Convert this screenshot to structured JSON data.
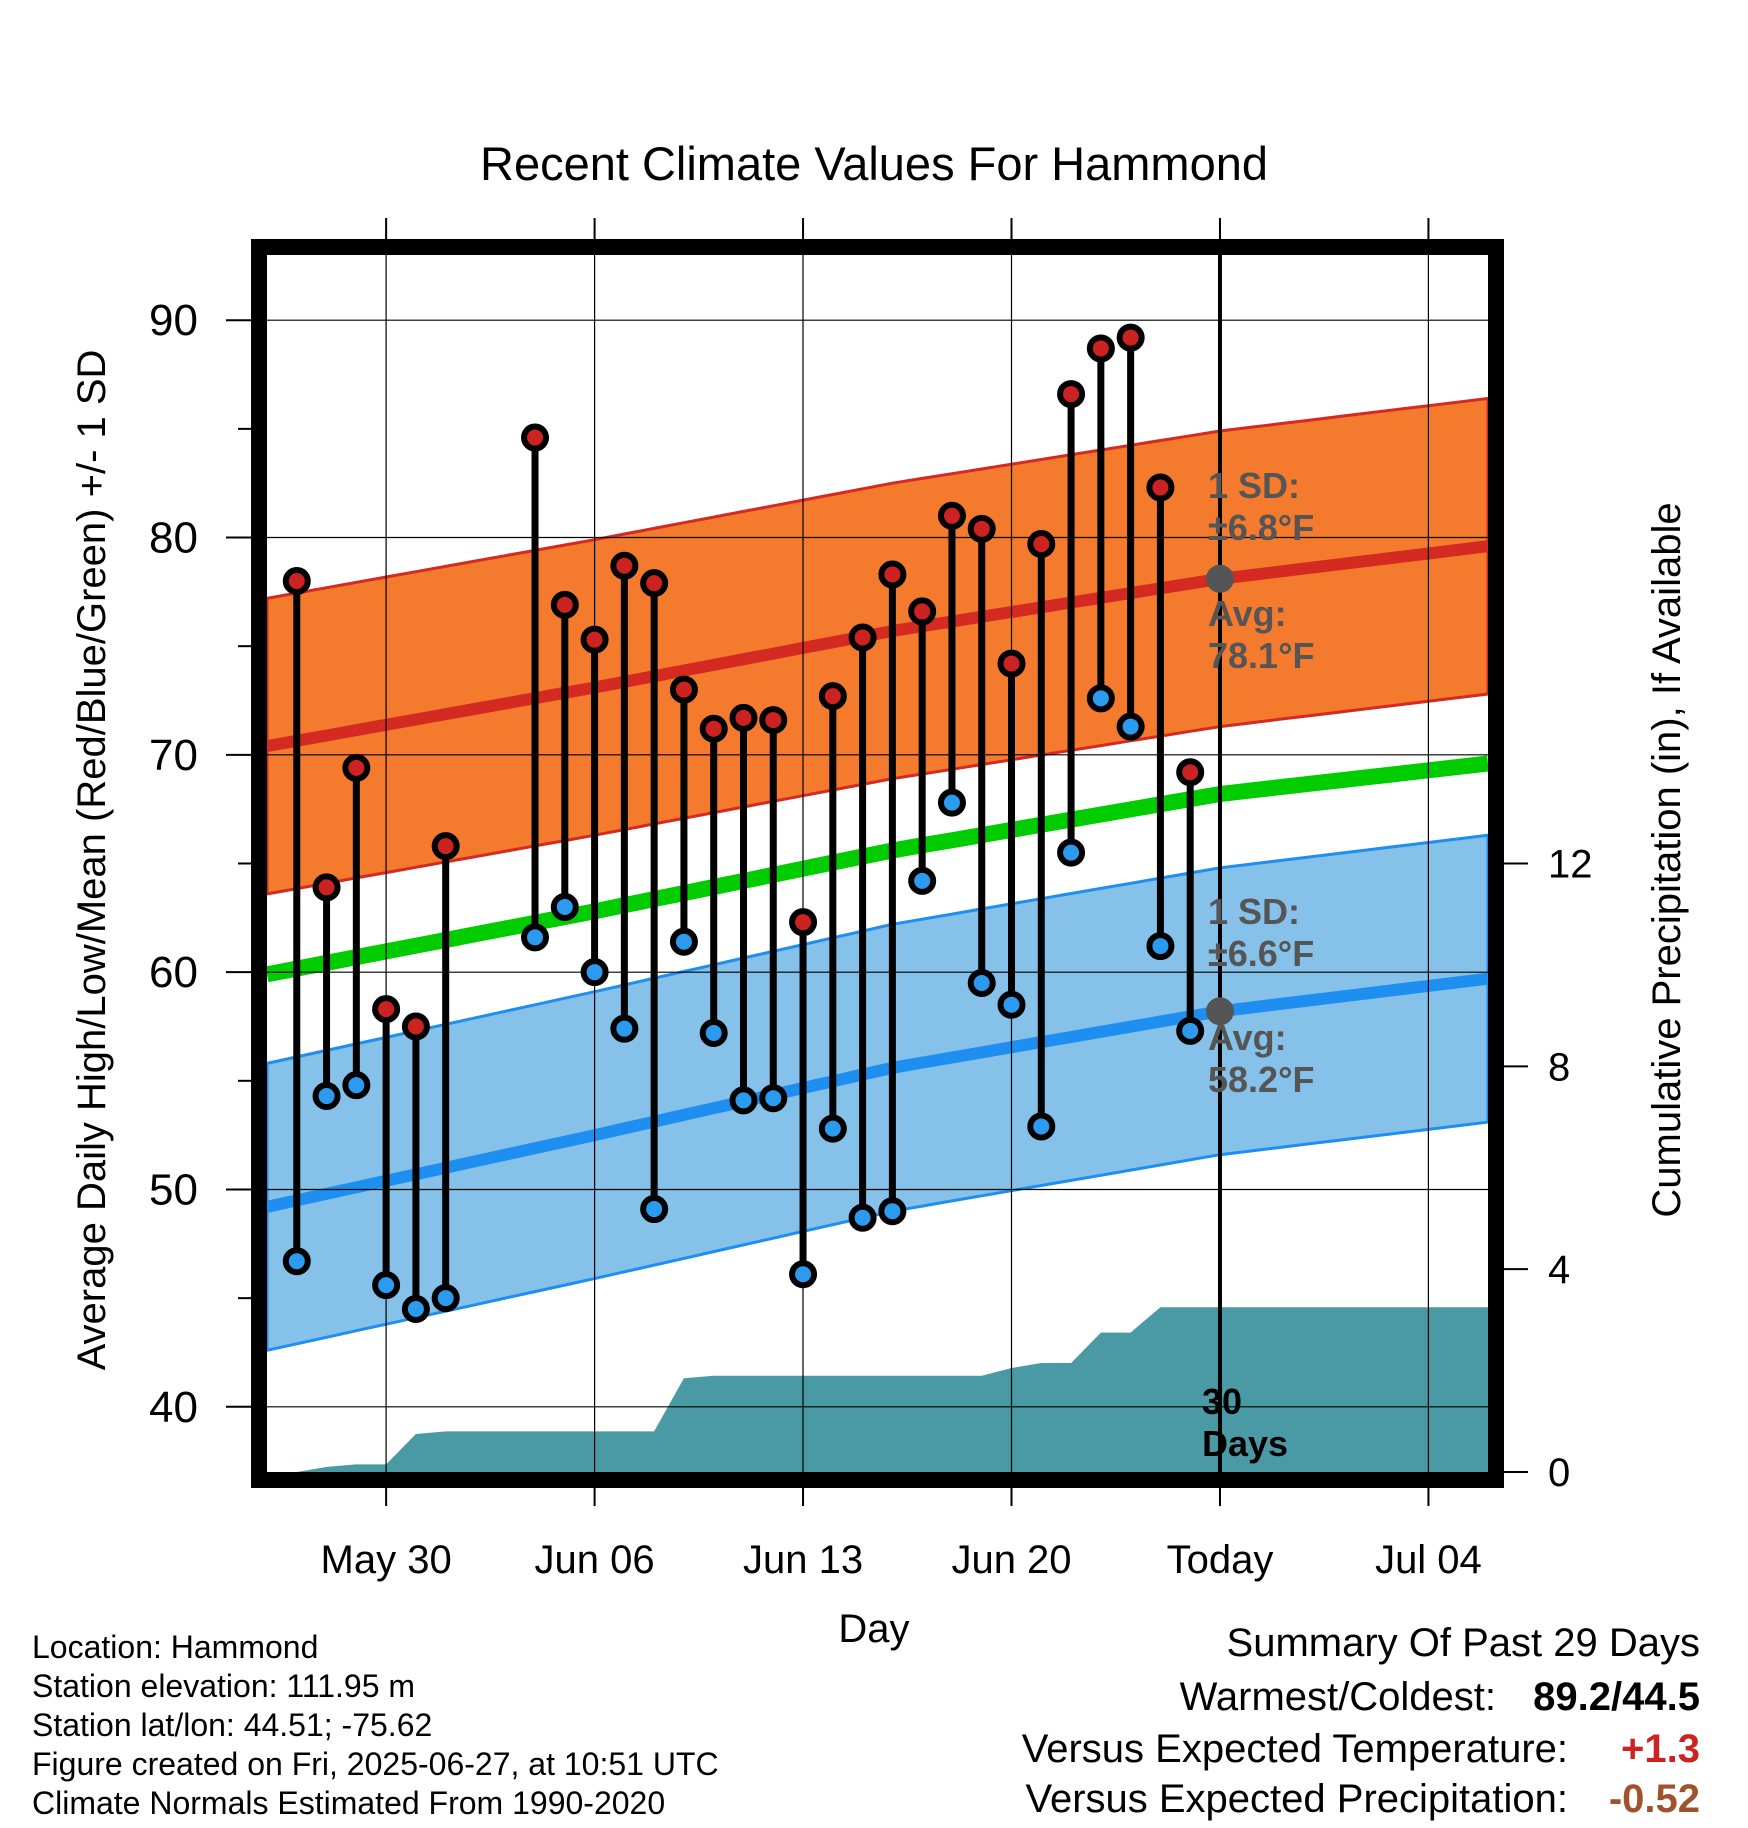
{
  "chart_data": {
    "type": "line",
    "title": "Recent Climate Values For Hammond",
    "xlabel": "Day",
    "ylabel_left": "Average Daily High/Low/Mean (Red/Blue/Green) +/- 1 SD",
    "ylabel_right": "Cumulative Precipitation (in), If Available",
    "x_tick_labels": [
      "May 30",
      "Jun 06",
      "Jun 13",
      "Jun 20",
      "Today",
      "Jul 04"
    ],
    "x_tick_dates": [
      "2025-05-30",
      "2025-06-06",
      "2025-06-13",
      "2025-06-20",
      "2025-06-27",
      "2025-07-04"
    ],
    "x_range": [
      "2025-05-26",
      "2025-07-06"
    ],
    "ylim_left": [
      37,
      93
    ],
    "ylim_right": [
      0,
      24
    ],
    "y_ticks_left": [
      40,
      50,
      60,
      70,
      80,
      90
    ],
    "y_ticks_right": [
      0,
      4,
      8,
      12
    ],
    "today": "2025-06-27",
    "today_label": "Today",
    "daily_observations": {
      "dates": [
        "2025-05-27",
        "2025-05-28",
        "2025-05-29",
        "2025-05-30",
        "2025-05-31",
        "2025-06-01",
        "2025-06-02",
        "2025-06-04",
        "2025-06-05",
        "2025-06-06",
        "2025-06-07",
        "2025-06-08",
        "2025-06-09",
        "2025-06-10",
        "2025-06-11",
        "2025-06-12",
        "2025-06-13",
        "2025-06-14",
        "2025-06-15",
        "2025-06-16",
        "2025-06-17",
        "2025-06-18",
        "2025-06-19",
        "2025-06-20",
        "2025-06-21",
        "2025-06-22",
        "2025-06-23",
        "2025-06-24",
        "2025-06-25",
        "2025-06-26"
      ],
      "high": [
        78.0,
        63.9,
        69.4,
        58.3,
        57.5,
        65.8,
        null,
        84.6,
        76.9,
        75.3,
        78.7,
        77.9,
        73.0,
        71.2,
        71.7,
        71.6,
        62.3,
        72.7,
        75.4,
        78.3,
        76.6,
        81.0,
        80.4,
        74.2,
        79.7,
        86.6,
        88.7,
        89.2,
        82.3,
        69.2
      ],
      "low": [
        46.7,
        54.3,
        54.8,
        45.6,
        44.5,
        45.0,
        null,
        61.6,
        63.0,
        60.0,
        57.4,
        49.1,
        61.4,
        57.2,
        54.1,
        54.2,
        46.1,
        52.8,
        48.7,
        49.0,
        64.2,
        67.8,
        59.5,
        58.5,
        52.9,
        65.5,
        72.6,
        71.3,
        61.2,
        57.3
      ]
    },
    "normals": {
      "dates": [
        "2025-05-26",
        "2025-06-06",
        "2025-06-16",
        "2025-06-27",
        "2025-07-06"
      ],
      "avg_high": [
        70.4,
        73.1,
        75.7,
        78.1,
        79.6
      ],
      "avg_low": [
        49.2,
        52.5,
        55.6,
        58.2,
        59.7
      ],
      "avg_mean": [
        59.9,
        62.8,
        65.6,
        68.2,
        69.6
      ],
      "high_sd": 6.8,
      "low_sd": 6.6
    },
    "precip_cumulative": {
      "dates": [
        "2025-05-26",
        "2025-05-27",
        "2025-05-28",
        "2025-05-29",
        "2025-05-30",
        "2025-05-31",
        "2025-06-01",
        "2025-06-02",
        "2025-06-03",
        "2025-06-04",
        "2025-06-05",
        "2025-06-06",
        "2025-06-07",
        "2025-06-08",
        "2025-06-09",
        "2025-06-10",
        "2025-06-11",
        "2025-06-12",
        "2025-06-13",
        "2025-06-14",
        "2025-06-15",
        "2025-06-16",
        "2025-06-17",
        "2025-06-18",
        "2025-06-19",
        "2025-06-20",
        "2025-06-21",
        "2025-06-22",
        "2025-06-23",
        "2025-06-24",
        "2025-06-25",
        "2025-06-26",
        "2025-06-27",
        "2025-07-06"
      ],
      "values": [
        0.0,
        0.0,
        0.1,
        0.15,
        0.15,
        0.75,
        0.8,
        0.8,
        0.8,
        0.8,
        0.8,
        0.8,
        0.8,
        0.8,
        1.85,
        1.9,
        1.9,
        1.9,
        1.9,
        1.9,
        1.9,
        1.9,
        1.9,
        1.9,
        1.9,
        2.05,
        2.15,
        2.15,
        2.75,
        2.75,
        3.25,
        3.25,
        3.25,
        3.25
      ]
    },
    "annotations": {
      "high_sd_label": [
        "1 SD:",
        "±6.8°F"
      ],
      "high_avg_label": [
        "Avg:",
        "78.1°F"
      ],
      "low_sd_label": [
        "1 SD:",
        "±6.6°F"
      ],
      "low_avg_label": [
        "Avg:",
        "58.2°F"
      ],
      "days_label": [
        "30",
        "Days"
      ]
    },
    "colors": {
      "high_band": "#f47b2e",
      "high_line": "#d42a22",
      "low_band": "#85c1e8",
      "low_line": "#1e8ef0",
      "mean_line": "#00cc00",
      "precip": "#4a9aa5",
      "high_dot": "#cc2222",
      "low_dot": "#2b9bf0",
      "annotation_text": "#555555",
      "today_dot": "#555555"
    }
  },
  "info": {
    "location": "Location: Hammond",
    "elevation": "Station elevation: 111.95 m",
    "latlon": "Station lat/lon: 44.51; -75.62",
    "created": "Figure created on Fri, 2025-06-27, at 10:51 UTC",
    "normals": "Climate Normals Estimated From 1990-2020"
  },
  "summary": {
    "title": "Summary Of Past 29 Days",
    "warmest_coldest_label": "Warmest/Coldest:",
    "warmest_coldest_value": "89.2/44.5",
    "temp_label": "Versus Expected Temperature:",
    "temp_value": "+1.3",
    "temp_color": "#cc2222",
    "precip_label": "Versus Expected Precipitation:",
    "precip_value": "-0.52",
    "precip_color": "#a0522d"
  }
}
